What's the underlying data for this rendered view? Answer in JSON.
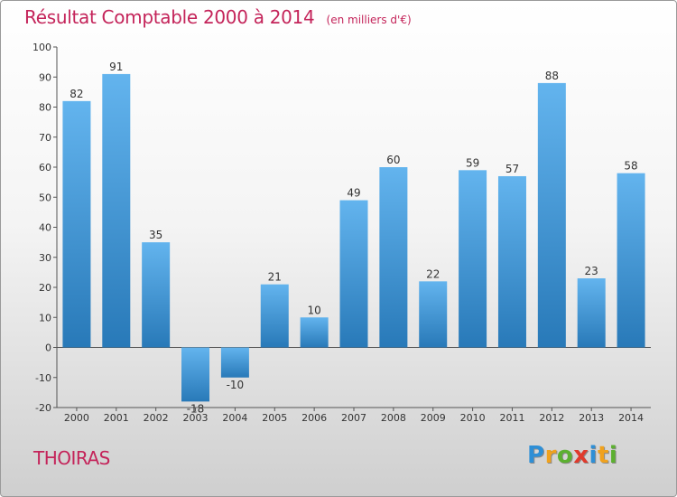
{
  "header": {
    "title": "Résultat Comptable 2000 à 2014",
    "subtitle": "(en milliers d'€)"
  },
  "footer": {
    "commune": "THOIRAS"
  },
  "logo": {
    "letters": [
      "P",
      "r",
      "o",
      "x",
      "i",
      "t",
      "i"
    ],
    "colors": [
      "#2e8fd6",
      "#f0a21e",
      "#5cb030",
      "#e03a2c",
      "#2e8fd6",
      "#f0a21e",
      "#5cb030"
    ]
  },
  "colors": {
    "bar_light": "#63b4ee",
    "bar_dark": "#2879b8",
    "title": "#c4245a"
  },
  "chart_data": {
    "type": "bar",
    "title": "Résultat Comptable 2000 à 2014",
    "subtitle": "(en milliers d'€)",
    "categories": [
      "2000",
      "2001",
      "2002",
      "2003",
      "2004",
      "2005",
      "2006",
      "2007",
      "2008",
      "2009",
      "2010",
      "2011",
      "2012",
      "2013",
      "2014"
    ],
    "values": [
      82,
      91,
      35,
      -18,
      -10,
      21,
      10,
      49,
      60,
      22,
      59,
      57,
      88,
      23,
      58
    ],
    "ylim": [
      -20,
      100
    ],
    "yticks": [
      -20,
      -10,
      0,
      10,
      20,
      30,
      40,
      50,
      60,
      70,
      80,
      90,
      100
    ],
    "grid": false,
    "legend": "none"
  }
}
